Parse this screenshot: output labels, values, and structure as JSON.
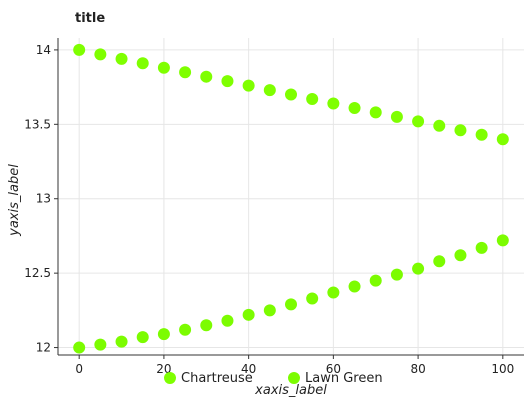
{
  "chart_data": {
    "type": "scatter",
    "title": "title",
    "xlabel": "xaxis_label",
    "ylabel": "yaxis_label",
    "xlim": [
      -5,
      105
    ],
    "ylim": [
      11.95,
      14.08
    ],
    "x_ticks": [
      0,
      20,
      40,
      60,
      80,
      100
    ],
    "y_ticks": [
      12,
      12.5,
      13,
      13.5,
      14
    ],
    "x_tick_labels": [
      "0",
      "20",
      "40",
      "60",
      "80",
      "100"
    ],
    "y_tick_labels": [
      "12",
      "12.5",
      "13",
      "13.5",
      "14"
    ],
    "grid": true,
    "legend": {
      "placement": "bottom-left",
      "entries": [
        "Chartreuse",
        "Lawn Green"
      ]
    },
    "series": [
      {
        "name": "Chartreuse",
        "color": "#7fff00",
        "x": [
          0,
          5,
          10,
          15,
          20,
          25,
          30,
          35,
          40,
          45,
          50,
          55,
          60,
          65,
          70,
          75,
          80,
          85,
          90,
          95,
          100
        ],
        "y": [
          14.0,
          13.97,
          13.94,
          13.91,
          13.88,
          13.85,
          13.82,
          13.79,
          13.76,
          13.73,
          13.7,
          13.67,
          13.64,
          13.61,
          13.58,
          13.55,
          13.52,
          13.49,
          13.46,
          13.43,
          13.4
        ]
      },
      {
        "name": "Lawn Green",
        "color": "#7cfc00",
        "x": [
          0,
          5,
          10,
          15,
          20,
          25,
          30,
          35,
          40,
          45,
          50,
          55,
          60,
          65,
          70,
          75,
          80,
          85,
          90,
          95,
          100
        ],
        "y": [
          12.0,
          12.02,
          12.04,
          12.07,
          12.09,
          12.12,
          12.15,
          12.18,
          12.22,
          12.25,
          12.29,
          12.33,
          12.37,
          12.41,
          12.45,
          12.49,
          12.53,
          12.58,
          12.62,
          12.67,
          12.72
        ]
      }
    ]
  }
}
